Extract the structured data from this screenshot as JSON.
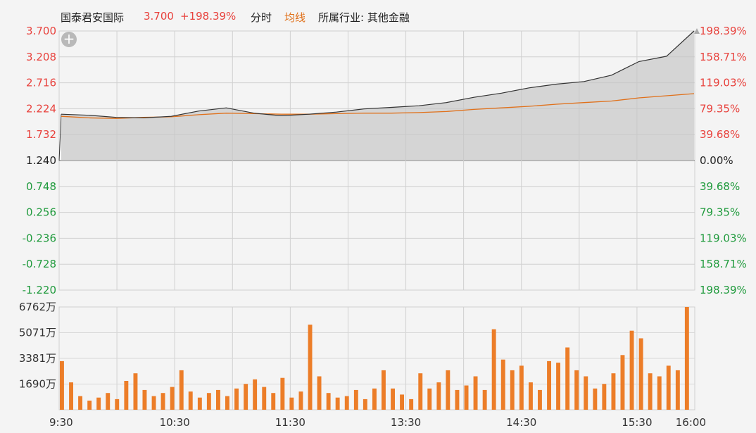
{
  "header": {
    "stock_name": "国泰君安国际",
    "price": "3.700",
    "change_pct": "+198.39%",
    "tab_timeshare": "分时",
    "tab_average": "均线",
    "industry": "所属行业: 其他金融"
  },
  "colors": {
    "up": "#e8423d",
    "down": "#1f9a3c",
    "avg_line": "#e0701a",
    "price_line": "#333333",
    "volume_bar": "#ec7d28"
  },
  "icons": {
    "zoom": "plus-icon"
  },
  "zoom_button_label": "+",
  "price_axis_left": [
    "3.700",
    "3.208",
    "2.716",
    "2.224",
    "1.732",
    "1.240",
    "0.748",
    "0.256",
    "-0.236",
    "-0.728",
    "-1.220"
  ],
  "pct_axis_right": [
    "198.39%",
    "158.71%",
    "119.03%",
    "79.35%",
    "39.68%",
    "0.00%",
    "39.68%",
    "79.35%",
    "119.03%",
    "158.71%",
    "198.39%"
  ],
  "volume_axis": [
    "6762万",
    "5071万",
    "3381万",
    "1690万"
  ],
  "time_labels": [
    "9:30",
    "10:30",
    "11:30",
    "13:30",
    "14:30",
    "15:30",
    "16:00"
  ],
  "chart_data": {
    "type": "line",
    "x": [
      "9:30",
      "9:45",
      "10:00",
      "10:15",
      "10:30",
      "10:45",
      "11:00",
      "11:15",
      "11:30",
      "11:45",
      "12:00",
      "13:00",
      "13:15",
      "13:30",
      "13:45",
      "14:00",
      "14:15",
      "14:30",
      "14:45",
      "15:00",
      "15:15",
      "15:30",
      "15:45",
      "16:00"
    ],
    "series": [
      {
        "values": [
          2.12,
          2.1,
          2.06,
          2.05,
          2.08,
          2.18,
          2.24,
          2.14,
          2.09,
          2.12,
          2.16,
          2.22,
          2.25,
          2.28,
          2.34,
          2.44,
          2.52,
          2.62,
          2.69,
          2.74,
          2.86,
          3.12,
          3.22,
          3.7
        ]
      },
      {
        "values": [
          2.08,
          2.05,
          2.04,
          2.06,
          2.07,
          2.11,
          2.14,
          2.13,
          2.12,
          2.12,
          2.13,
          2.14,
          2.14,
          2.15,
          2.17,
          2.21,
          2.24,
          2.27,
          2.31,
          2.34,
          2.37,
          2.43,
          2.47,
          2.51
        ]
      }
    ],
    "ylim": [
      -1.22,
      3.7
    ],
    "prev_close": 1.24,
    "volume": {
      "ylim": [
        0,
        6762
      ],
      "unit": "万",
      "values": [
        3200,
        1800,
        900,
        600,
        800,
        1100,
        700,
        1900,
        2400,
        1300,
        900,
        1100,
        1500,
        2600,
        1200,
        800,
        1100,
        1300,
        900,
        1400,
        1700,
        2000,
        1500,
        1100,
        2100,
        800,
        1200,
        5600,
        2200,
        1100,
        800,
        900,
        1300,
        700,
        1400,
        2600,
        1400,
        1000,
        700,
        2400,
        1400,
        1800,
        2600,
        1300,
        1600,
        2200,
        1300,
        5300,
        3300,
        2600,
        2900,
        1800,
        1300,
        3200,
        3100,
        4100,
        2600,
        2200,
        1400,
        1700,
        2400,
        3600,
        5200,
        4700,
        2400,
        2200,
        2900,
        2600,
        6762
      ]
    },
    "xlabel": "",
    "ylabel": ""
  }
}
